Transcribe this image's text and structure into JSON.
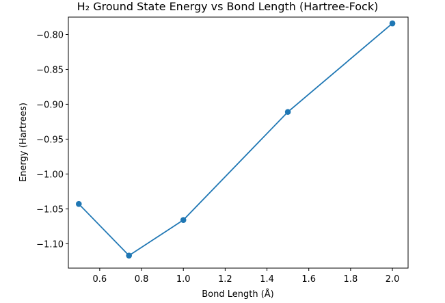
{
  "chart_data": {
    "type": "line",
    "title": "H₂ Ground State Energy vs Bond Length (Hartree-Fock)",
    "xlabel": "Bond Length (Å)",
    "ylabel": "Energy (Hartrees)",
    "xlim": [
      0.45,
      2.075
    ],
    "ylim": [
      -1.135,
      -0.775
    ],
    "xticks": [
      0.6,
      0.8,
      1.0,
      1.2,
      1.4,
      1.6,
      1.8,
      2.0
    ],
    "xtick_labels": [
      "0.6",
      "0.8",
      "1.0",
      "1.2",
      "1.4",
      "1.6",
      "1.8",
      "2.0"
    ],
    "yticks": [
      -0.8,
      -0.85,
      -0.9,
      -0.95,
      -1.0,
      -1.05,
      -1.1
    ],
    "ytick_labels": [
      "−0.80",
      "−0.85",
      "−0.90",
      "−0.95",
      "−1.00",
      "−1.05",
      "−1.10"
    ],
    "grid": false,
    "series": [
      {
        "color": "#1f77b4",
        "marker": "circle",
        "x": [
          0.5,
          0.74,
          1.0,
          1.5,
          2.0
        ],
        "y": [
          -1.043,
          -1.117,
          -1.066,
          -0.911,
          -0.784
        ]
      }
    ]
  }
}
